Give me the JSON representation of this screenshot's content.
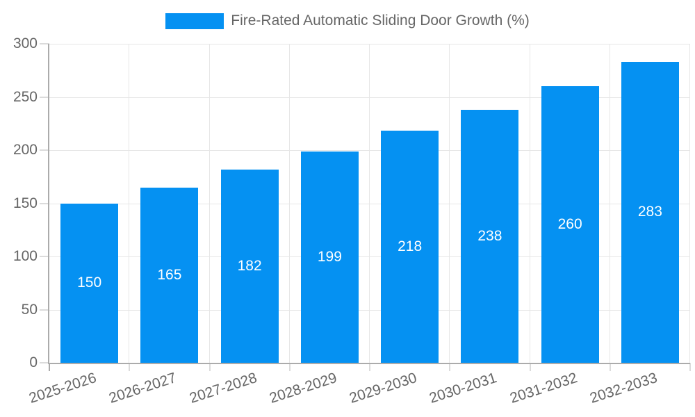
{
  "legend": {
    "label": "Fire-Rated Automatic Sliding Door Growth (%)"
  },
  "chart_data": {
    "type": "bar",
    "title": "Fire-Rated Automatic Sliding Door Growth (%)",
    "categories": [
      "2025-2026",
      "2026-2027",
      "2027-2028",
      "2028-2029",
      "2029-2030",
      "2030-2031",
      "2031-2032",
      "2032-2033"
    ],
    "values": [
      150,
      165,
      182,
      199,
      218,
      238,
      260,
      283
    ],
    "xlabel": "",
    "ylabel": "",
    "ylim": [
      0,
      300
    ],
    "yticks": [
      0,
      50,
      100,
      150,
      200,
      250,
      300
    ],
    "grid": true,
    "legend_position": "top",
    "bar_color": "#0591F2",
    "value_label_color": "#FFFFFF"
  },
  "colors": {
    "bar": "#0591F2",
    "grid": "#E6E6E6",
    "axis": "#ABABAB",
    "tick": "#DBDBDB",
    "tick_text": "#666666",
    "legend_text": "#666666",
    "background": "#FFFFFF"
  }
}
